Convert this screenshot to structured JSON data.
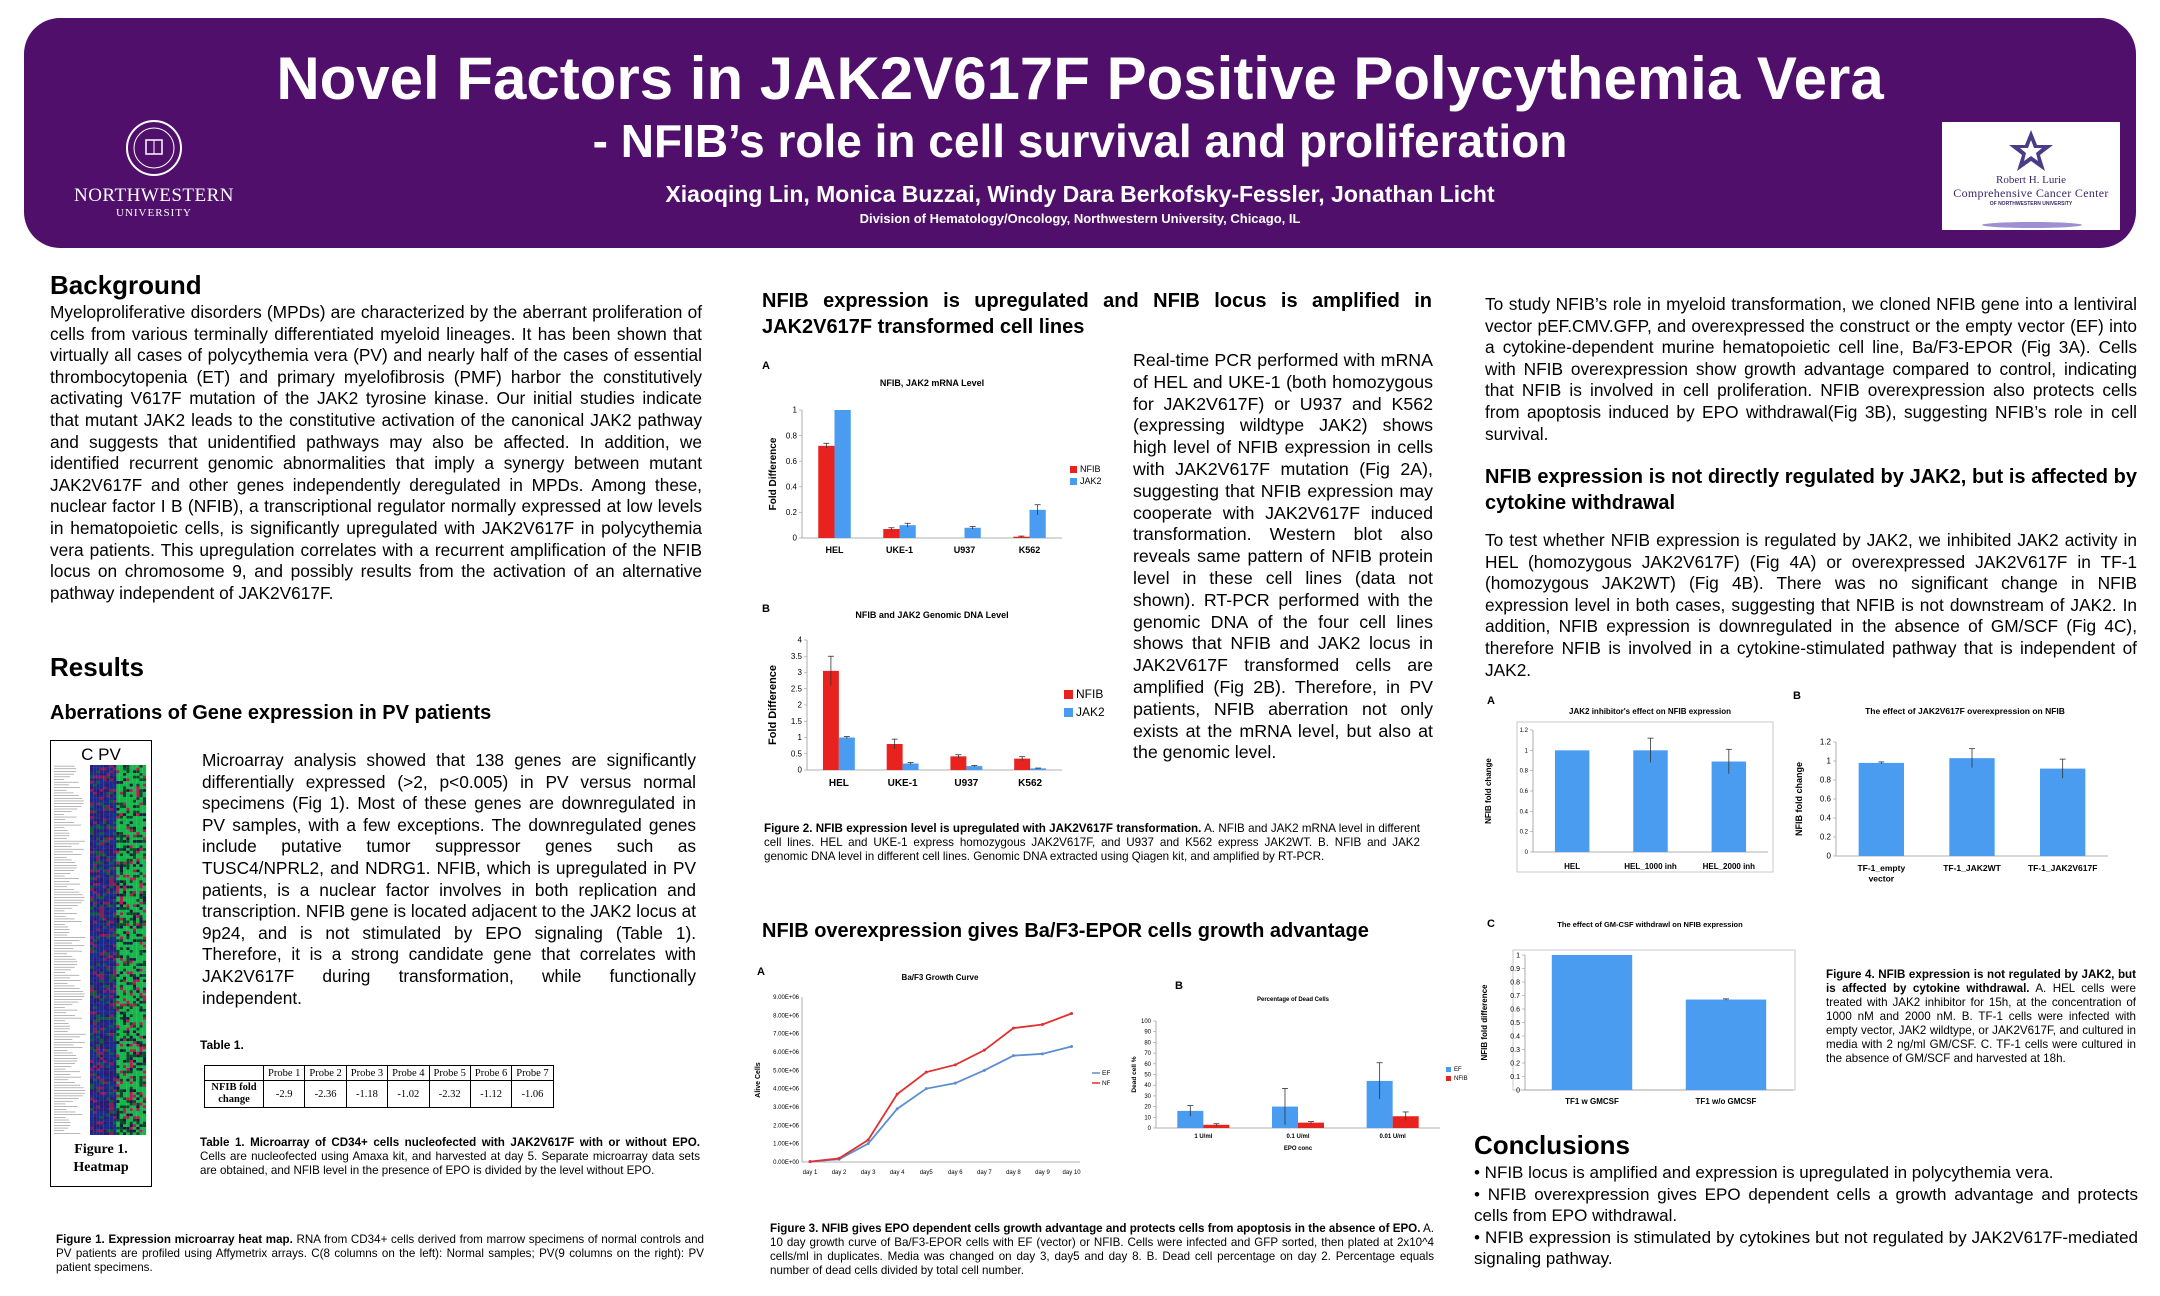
{
  "header": {
    "title": "Novel Factors in JAK2V617F Positive Polycythemia Vera",
    "subtitle": "- NFIB’s role in cell survival and proliferation",
    "authors": "Xiaoqing Lin, Monica Buzzai, Windy Dara Berkofsky-Fessler, Jonathan Licht",
    "affiliation": "Division of Hematology/Oncology, Northwestern University, Chicago, IL",
    "left_logo": {
      "name": "NORTHWESTERN",
      "sub": "UNIVERSITY"
    },
    "right_logo": {
      "line1": "Robert H. Lurie",
      "line2": "Comprehensive Cancer Center",
      "line3": "OF NORTHWESTERN UNIVERSITY"
    }
  },
  "background": {
    "heading": "Background",
    "text": "Myeloproliferative disorders (MPDs) are characterized by the aberrant proliferation of cells from various terminally differentiated myeloid lineages. It has been shown that virtually all cases of polycythemia vera (PV) and nearly half of the cases of essential thrombocytopenia (ET) and primary myelofibrosis (PMF) harbor the constitutively activating V617F mutation of the JAK2 tyrosine kinase. Our initial studies indicate that mutant JAK2 leads to the constitutive activation of the canonical JAK2 pathway and suggests that unidentified pathways may also be affected. In addition, we identified recurrent genomic abnormalities that imply a synergy between mutant JAK2V617F and other genes independently deregulated in MPDs. Among these, nuclear factor I B (NFIB), a transcriptional regulator normally expressed at low levels in hematopoietic cells, is significantly upregulated with JAK2V617F in polycythemia vera patients. This upregulation correlates with a recurrent amplification of the NFIB locus on chromosome 9, and possibly results from the activation of an alternative pathway independent of JAK2V617F."
  },
  "results": {
    "heading": "Results",
    "subheading": "Aberrations of Gene expression in PV patients",
    "text": "Microarray analysis showed that 138 genes are significantly differentially expressed (>2, p<0.005) in PV versus normal specimens (Fig 1). Most of these genes are downregulated in PV samples, with a few exceptions. The downregulated genes include putative tumor suppressor genes such as TUSC4/NPRL2, and NDRG1. NFIB, which is upregulated in PV patients, is a nuclear factor involves in both replication and transcription. NFIB gene is located adjacent to the JAK2 locus at 9p24, and is not stimulated by EPO signaling (Table 1). Therefore, it is a strong candidate gene that correlates with JAK2V617F during transformation, while functionally independent.",
    "heatmap_header": "C  PV",
    "heatmap_caption": "Figure 1. Heatmap",
    "table_label": "Table 1.",
    "table": {
      "row_label": "NFIB fold change",
      "columns": [
        "Probe 1",
        "Probe 2",
        "Probe 3",
        "Probe 4",
        "Probe 5",
        "Probe 6",
        "Probe 7"
      ],
      "values": [
        "-2.9",
        "-2.36",
        "-1.18",
        "-1.02",
        "-2.32",
        "-1.12",
        "-1.06"
      ]
    },
    "table_caption_bold": "Table 1. Microarray of CD34+ cells nucleofected with JAK2V617F with or without EPO.",
    "table_caption_rest": " Cells are nucleofected using Amaxa kit, and harvested at day 5. Separate microarray data sets are obtained, and NFIB level in the presence of EPO is divided by the level without EPO.",
    "fig1_caption_bold": "Figure 1. Expression microarray heat map.",
    "fig1_caption_rest": " RNA from CD34+ cells derived from marrow specimens of normal controls and PV patients are profiled using Affymetrix arrays. C(8 columns on the left): Normal samples; PV(9 columns on the right): PV patient specimens."
  },
  "section2": {
    "heading": "NFIB expression is upregulated and NFIB locus is amplified in JAK2V617F transformed cell lines",
    "text": "Real-time PCR performed with mRNA of HEL and UKE-1 (both homozygous for JAK2V617F) or U937 and K562 (expressing wildtype JAK2) shows high level of NFIB expression in cells with JAK2V617F mutation (Fig 2A), suggesting that NFIB expression may cooperate with JAK2V617F induced transformation. Western blot also reveals same pattern of NFIB protein level in these cell lines (data not shown). RT-PCR performed with the genomic DNA of the four cell lines shows that NFIB and JAK2 locus in JAK2V617F transformed cells are amplified (Fig 2B). Therefore, in PV patients, NFIB aberration not only exists at the mRNA level, but also at the genomic level.",
    "panel_a": "A",
    "panel_b": "B",
    "fig2_caption_bold": "Figure 2. NFIB expression level is upregulated with JAK2V617F transformation.",
    "fig2_caption_rest": " A. NFIB and JAK2 mRNA level in different cell lines. HEL and UKE-1 express homozygous JAK2V617F, and U937 and K562 express JAK2WT. B. NFIB and JAK2 genomic DNA level in different cell lines. Genomic DNA extracted using Qiagen kit, and amplified by RT-PCR."
  },
  "section3": {
    "heading": "NFIB overexpression gives Ba/F3-EPOR cells growth advantage",
    "panel_a": "A",
    "panel_b": "B",
    "fig3_caption_bold": "Figure 3. NFIB gives EPO dependent cells growth advantage and protects cells from apoptosis in the absence of EPO.",
    "fig3_caption_rest": " A. 10 day growth curve of Ba/F3-EPOR cells with EF (vector) or NFIB. Cells were infected and GFP sorted, then plated at 2x10^4 cells/ml in duplicates. Media was changed on day 3, day5 and day 8. B. Dead cell percentage on day 2. Percentage equals number of dead cells divided by total cell number."
  },
  "section4": {
    "text": "To study NFIB’s role in myeloid transformation, we cloned NFIB gene into a lentiviral vector pEF.CMV.GFP, and overexpressed the construct or the empty vector (EF) into a cytokine-dependent murine hematopoietic cell line, Ba/F3-EPOR (Fig 3A). Cells with NFIB overexpression show growth advantage compared to control, indicating that NFIB is involved in cell proliferation. NFIB overexpression also protects cells from apoptosis induced by EPO withdrawal(Fig 3B), suggesting NFIB’s role in cell survival."
  },
  "section5": {
    "heading": "NFIB expression is not directly regulated by JAK2, but is affected by cytokine withdrawal",
    "text": "To test whether NFIB expression is regulated by JAK2, we inhibited JAK2 activity in HEL (homozygous JAK2V617F) (Fig 4A) or overexpressed JAK2V617F in TF-1 (homozygous JAK2WT) (Fig 4B). There was no significant change in NFIB expression level in both cases, suggesting that NFIB is not downstream of JAK2. In addition, NFIB expression is downregulated in the absence of GM/SCF (Fig 4C), therefore NFIB is involved in a cytokine-stimulated pathway that is independent of JAK2.",
    "panel_a": "A",
    "panel_b": "B",
    "panel_c": "C",
    "fig4_caption_bold": "Figure 4. NFIB expression is not regulated by JAK2, but is affected by cytokine withdrawal.",
    "fig4_caption_rest": " A. HEL cells were treated with JAK2 inhibitor for 15h, at the concentration of 1000 nM and 2000 nM. B. TF-1 cells were infected with empty vector, JAK2 wildtype, or JAK2V617F, and cultured in media with 2 ng/ml GM/CSF. C. TF-1 cells were cultured in the absence of GM/SCF and harvested at 18h."
  },
  "conclusions": {
    "heading": "Conclusions",
    "items": [
      "• NFIB locus is amplified and expression is upregulated in polycythemia vera.",
      "• NFIB overexpression gives EPO dependent cells a growth advantage and protects cells from EPO withdrawal.",
      "• NFIB expression is stimulated by cytokines but not regulated by JAK2V617F-mediated signaling pathway."
    ]
  },
  "colors": {
    "header_bg": "#4f0f6b",
    "nfib_red": "#e8231f",
    "jak2_blue": "#4a9cf0",
    "ef_blue": "#5b8fd0",
    "nfib_line_red": "#e03030"
  },
  "chart_data": [
    {
      "id": "fig2a",
      "type": "bar",
      "title": "NFIB, JAK2 mRNA Level",
      "ylabel": "Fold Difference",
      "xlabel": "",
      "categories": [
        "HEL",
        "UKE-1",
        "U937",
        "K562"
      ],
      "ylim": [
        0,
        1
      ],
      "yticks": [
        "0",
        "0.2",
        "0.4",
        "0.6",
        "0.8",
        "1"
      ],
      "series": [
        {
          "name": "NFIB",
          "color": "#e8231f",
          "values": [
            0.72,
            0.07,
            0.0,
            0.01
          ],
          "errors": [
            0.02,
            0.01,
            0.0,
            0.005
          ]
        },
        {
          "name": "JAK2",
          "color": "#4a9cf0",
          "values": [
            1.0,
            0.1,
            0.08,
            0.22
          ],
          "errors": [
            0.0,
            0.015,
            0.01,
            0.04
          ]
        }
      ],
      "legend": "right"
    },
    {
      "id": "fig2b",
      "type": "bar",
      "title": "NFIB and JAK2 Genomic DNA Level",
      "ylabel": "Fold Difference",
      "xlabel": "",
      "categories": [
        "HEL",
        "UKE-1",
        "U937",
        "K562"
      ],
      "ylim": [
        0,
        4
      ],
      "yticks": [
        "0",
        "0.5",
        "1",
        "1.5",
        "2",
        "2.5",
        "3",
        "3.5",
        "4"
      ],
      "series": [
        {
          "name": "NFIB",
          "color": "#e8231f",
          "values": [
            3.05,
            0.8,
            0.42,
            0.35
          ],
          "errors": [
            0.45,
            0.15,
            0.05,
            0.06
          ]
        },
        {
          "name": "JAK2",
          "color": "#4a9cf0",
          "values": [
            1.0,
            0.2,
            0.12,
            0.05
          ],
          "errors": [
            0.03,
            0.03,
            0.02,
            0.01
          ]
        }
      ],
      "legend": "right"
    },
    {
      "id": "fig3a",
      "type": "line",
      "title": "Ba/F3 Growth Curve",
      "ylabel": "Alive Cells",
      "xlabel": "",
      "categories": [
        "day 1",
        "day 2",
        "day 3",
        "day 4",
        "day5",
        "day 6",
        "day 7",
        "day 8",
        "day 9",
        "day 10"
      ],
      "ylim": [
        0,
        9000000
      ],
      "yticks": [
        "0.00E+00",
        "1.00E+06",
        "2.00E+06",
        "3.00E+06",
        "4.00E+06",
        "5.00E+06",
        "6.00E+06",
        "7.00E+06",
        "8.00E+06",
        "9.00E+06"
      ],
      "series": [
        {
          "name": "EF",
          "color": "#5b8fd0",
          "values": [
            20000,
            150000,
            1000000,
            2900000,
            4000000,
            4300000,
            5000000,
            5800000,
            5900000,
            6300000
          ]
        },
        {
          "name": "NF1",
          "color": "#e03030",
          "values": [
            20000,
            200000,
            1200000,
            3700000,
            4900000,
            5300000,
            6100000,
            7300000,
            7500000,
            8100000
          ]
        }
      ],
      "legend": "right"
    },
    {
      "id": "fig3b",
      "type": "bar",
      "title": "Percentage of Dead Cells",
      "ylabel": "Dead cell %",
      "xlabel": "EPO conc",
      "categories": [
        "1 U/ml",
        "0.1 U/ml",
        "0.01 U/ml"
      ],
      "ylim": [
        0,
        100
      ],
      "yticks": [
        "0",
        "10",
        "20",
        "30",
        "40",
        "50",
        "60",
        "70",
        "80",
        "90",
        "100"
      ],
      "series": [
        {
          "name": "EF",
          "color": "#4a9cf0",
          "values": [
            16,
            20,
            44
          ],
          "errors": [
            5,
            17,
            17
          ]
        },
        {
          "name": "NFIB",
          "color": "#e8231f",
          "values": [
            3,
            5,
            11
          ],
          "errors": [
            1,
            1,
            4
          ]
        }
      ],
      "legend": "right"
    },
    {
      "id": "fig4a",
      "type": "bar",
      "title": "JAK2 inhibitor's effect on NFIB expression",
      "ylabel": "NFIB fold change",
      "xlabel": "",
      "categories": [
        "HEL",
        "HEL_1000 inh",
        "HEL_2000 inh"
      ],
      "ylim": [
        0,
        1.2
      ],
      "yticks": [
        "0",
        "0.2",
        "0.4",
        "0.6",
        "0.8",
        "1",
        "1.2"
      ],
      "series": [
        {
          "name": "",
          "color": "#4a9cf0",
          "values": [
            1.0,
            1.0,
            0.89
          ],
          "errors": [
            0.0,
            0.12,
            0.12
          ]
        }
      ]
    },
    {
      "id": "fig4b",
      "type": "bar",
      "title": "The effect of JAK2V617F overexpression on NFIB",
      "ylabel": "NFIB fold change",
      "xlabel": "",
      "categories": [
        "TF-1_empty vector",
        "TF-1_JAK2WT",
        "TF-1_JAK2V617F"
      ],
      "ylim": [
        0,
        1.2
      ],
      "yticks": [
        "0",
        "0.2",
        "0.4",
        "0.6",
        "0.8",
        "1",
        "1.2"
      ],
      "series": [
        {
          "name": "",
          "color": "#4a9cf0",
          "values": [
            0.98,
            1.03,
            0.92
          ],
          "errors": [
            0.01,
            0.1,
            0.1
          ]
        }
      ]
    },
    {
      "id": "fig4c",
      "type": "bar",
      "title": "The effect of GM-CSF withdrawl on NFIB expression",
      "ylabel": "NFIB fold difference",
      "xlabel": "",
      "categories": [
        "TF1 w GMCSF",
        "TF1 w/o GMCSF"
      ],
      "ylim": [
        0,
        1
      ],
      "yticks": [
        "0",
        "0.1",
        "0.2",
        "0.3",
        "0.4",
        "0.5",
        "0.6",
        "0.7",
        "0.8",
        "0.9",
        "1"
      ],
      "series": [
        {
          "name": "",
          "color": "#4a9cf0",
          "values": [
            1.0,
            0.67
          ],
          "errors": [
            0.0,
            0.005
          ]
        }
      ]
    }
  ]
}
